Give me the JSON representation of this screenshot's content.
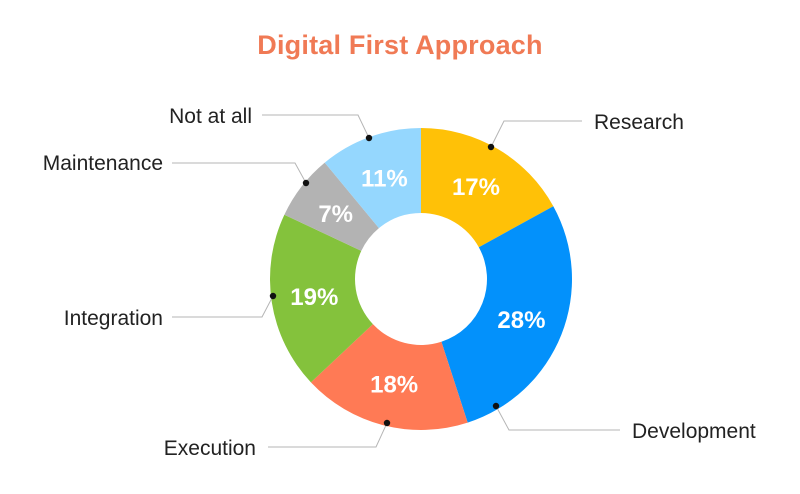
{
  "chart_data": {
    "type": "pie",
    "style": "donut",
    "title": "Digital First Approach",
    "title_color": "#f07a55",
    "start_angle_deg": 0,
    "direction": "clockwise",
    "slices": [
      {
        "label": "Research",
        "value": 17,
        "value_label": "17%",
        "color": "#ffc107"
      },
      {
        "label": "Development",
        "value": 28,
        "value_label": "28%",
        "color": "#0391fb"
      },
      {
        "label": "Execution",
        "value": 18,
        "value_label": "18%",
        "color": "#ff7a55"
      },
      {
        "label": "Integration",
        "value": 19,
        "value_label": "19%",
        "color": "#84c23c"
      },
      {
        "label": "Maintenance",
        "value": 7,
        "value_label": "7%",
        "color": "#b3b3b3"
      },
      {
        "label": "Not at all",
        "value": 11,
        "value_label": "11%",
        "color": "#95d7fe"
      }
    ]
  }
}
